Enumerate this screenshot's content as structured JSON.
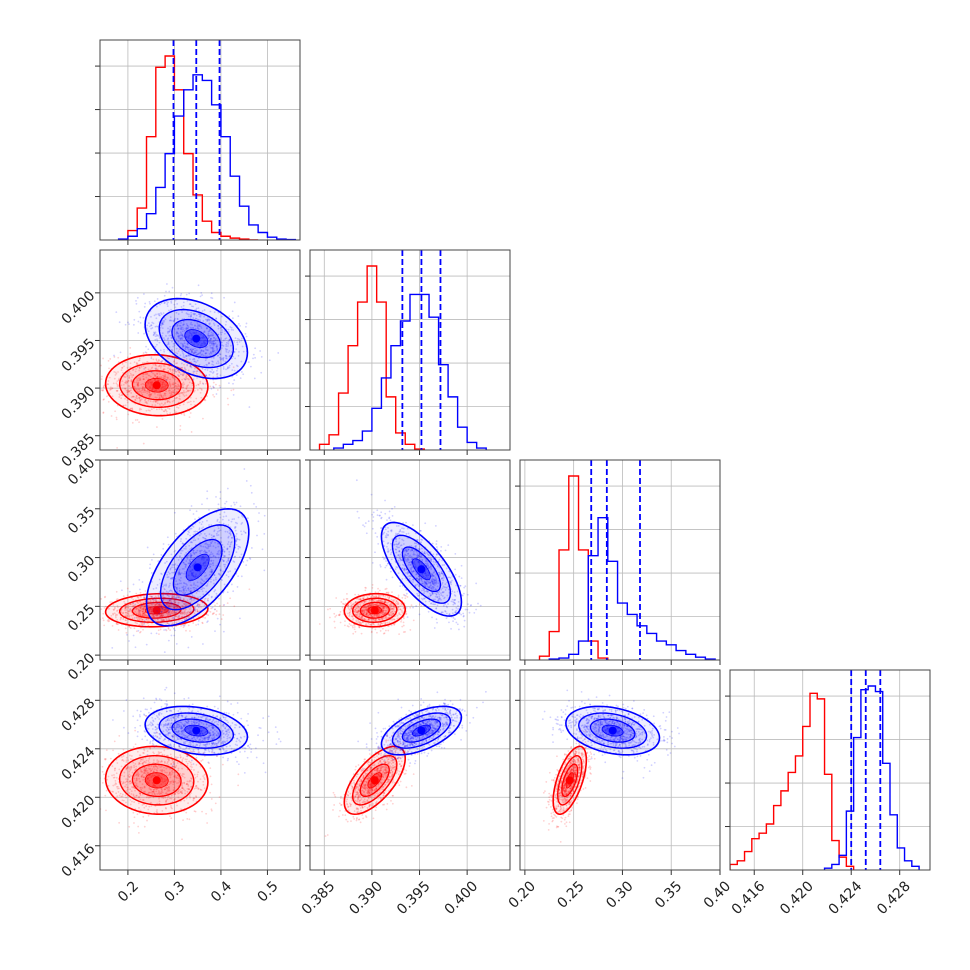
{
  "chart_data": {
    "type": "corner",
    "grid": true,
    "colors": {
      "series_a": "#ff0000",
      "series_b": "#0000ff",
      "median_lines": "#0000ff"
    },
    "parameters": [
      {
        "range": [
          0.14,
          0.57
        ],
        "ticks": [
          "0.2",
          "0.3",
          "0.4",
          "0.5"
        ],
        "tick_values": [
          0.2,
          0.3,
          0.4,
          0.5
        ]
      },
      {
        "range": [
          0.3835,
          0.4045
        ],
        "ticks": [
          "0.385",
          "0.390",
          "0.395",
          "0.400"
        ],
        "tick_values": [
          0.385,
          0.39,
          0.395,
          0.4
        ]
      },
      {
        "range": [
          0.195,
          0.4
        ],
        "ticks": [
          "0.20",
          "0.25",
          "0.30",
          "0.35",
          "0.40"
        ],
        "tick_values": [
          0.2,
          0.25,
          0.3,
          0.35,
          0.4
        ]
      },
      {
        "range": [
          0.414,
          0.4305
        ],
        "ticks": [
          "0.416",
          "0.420",
          "0.424",
          "0.428"
        ],
        "tick_values": [
          0.416,
          0.42,
          0.424,
          0.428
        ]
      }
    ],
    "marginals": [
      {
        "param": 0,
        "median_lines_b": [
          0.298,
          0.347,
          0.397
        ],
        "hist_a": {
          "edges": [
            0.2,
            0.22,
            0.24,
            0.26,
            0.28,
            0.3,
            0.32,
            0.34,
            0.36,
            0.38,
            0.4,
            0.42,
            0.44,
            0.46,
            0.48
          ],
          "counts": [
            0.05,
            0.17,
            0.55,
            0.92,
            0.98,
            0.8,
            0.46,
            0.24,
            0.1,
            0.04,
            0.02,
            0.01,
            0.005,
            0.0
          ]
        },
        "hist_b": {
          "edges": [
            0.18,
            0.2,
            0.22,
            0.24,
            0.26,
            0.28,
            0.3,
            0.32,
            0.34,
            0.36,
            0.38,
            0.4,
            0.42,
            0.44,
            0.46,
            0.48,
            0.5,
            0.52,
            0.54,
            0.56
          ],
          "counts": [
            0.005,
            0.02,
            0.06,
            0.14,
            0.28,
            0.46,
            0.66,
            0.8,
            0.88,
            0.85,
            0.72,
            0.55,
            0.34,
            0.18,
            0.08,
            0.04,
            0.015,
            0.005,
            0.002
          ]
        }
      },
      {
        "param": 1,
        "median_lines_b": [
          0.3932,
          0.3952,
          0.3972
        ],
        "hist_a": {
          "edges": [
            0.3845,
            0.3855,
            0.3865,
            0.3875,
            0.3885,
            0.3895,
            0.3905,
            0.3915,
            0.3925,
            0.3935,
            0.3945,
            0.3955
          ],
          "counts": [
            0.03,
            0.08,
            0.3,
            0.55,
            0.78,
            0.97,
            0.78,
            0.28,
            0.09,
            0.03,
            0.005
          ]
        },
        "hist_b": {
          "edges": [
            0.386,
            0.387,
            0.388,
            0.389,
            0.39,
            0.391,
            0.392,
            0.393,
            0.394,
            0.395,
            0.396,
            0.397,
            0.398,
            0.399,
            0.4,
            0.401,
            0.402
          ],
          "counts": [
            0.01,
            0.03,
            0.05,
            0.1,
            0.22,
            0.38,
            0.55,
            0.68,
            0.82,
            0.82,
            0.7,
            0.45,
            0.28,
            0.12,
            0.04,
            0.01
          ]
        }
      },
      {
        "param": 2,
        "median_lines_b": [
          0.268,
          0.284,
          0.318
        ],
        "hist_a": {
          "edges": [
            0.215,
            0.225,
            0.235,
            0.245,
            0.255,
            0.265,
            0.275,
            0.285
          ],
          "counts": [
            0.02,
            0.15,
            0.58,
            0.97,
            0.58,
            0.1,
            0.01
          ]
        },
        "hist_b": {
          "edges": [
            0.225,
            0.235,
            0.245,
            0.255,
            0.265,
            0.275,
            0.285,
            0.295,
            0.305,
            0.315,
            0.325,
            0.335,
            0.345,
            0.355,
            0.365,
            0.375,
            0.385,
            0.395
          ],
          "counts": [
            0.005,
            0.01,
            0.03,
            0.1,
            0.55,
            0.75,
            0.52,
            0.3,
            0.24,
            0.18,
            0.14,
            0.1,
            0.08,
            0.05,
            0.03,
            0.015,
            0.005
          ]
        }
      },
      {
        "param": 3,
        "median_lines_b": [
          0.424,
          0.4252,
          0.4264
        ],
        "hist_a": {
          "edges": [
            0.414,
            0.4146,
            0.4152,
            0.4158,
            0.4164,
            0.417,
            0.4176,
            0.4182,
            0.4188,
            0.4194,
            0.42,
            0.4206,
            0.4212,
            0.4218,
            0.4224,
            0.423,
            0.4236,
            0.4242
          ],
          "counts": [
            0.03,
            0.05,
            0.1,
            0.17,
            0.2,
            0.25,
            0.35,
            0.43,
            0.53,
            0.62,
            0.78,
            0.96,
            0.93,
            0.52,
            0.16,
            0.07,
            0.02
          ]
        },
        "hist_b": {
          "edges": [
            0.4218,
            0.4224,
            0.423,
            0.4236,
            0.4242,
            0.4248,
            0.4254,
            0.426,
            0.4266,
            0.4272,
            0.4278,
            0.4284,
            0.429,
            0.4296
          ],
          "counts": [
            0.01,
            0.03,
            0.08,
            0.32,
            0.72,
            0.98,
            1.0,
            0.97,
            0.58,
            0.3,
            0.12,
            0.05,
            0.02
          ]
        }
      }
    ],
    "joint": [
      {
        "x": 0,
        "y": 1,
        "a": {
          "center": [
            0.262,
            0.3903
          ],
          "sd": [
            0.055,
            0.0016
          ],
          "rho": -0.05
        },
        "b": {
          "center": [
            0.347,
            0.3952
          ],
          "sd": [
            0.055,
            0.0021
          ],
          "rho": -0.35
        }
      },
      {
        "x": 0,
        "y": 2,
        "a": {
          "center": [
            0.262,
            0.246
          ],
          "sd": [
            0.055,
            0.0085
          ],
          "rho": 0.1
        },
        "b": {
          "center": [
            0.35,
            0.29
          ],
          "sd": [
            0.055,
            0.03
          ],
          "rho": 0.6
        }
      },
      {
        "x": 1,
        "y": 2,
        "a": {
          "center": [
            0.3903,
            0.246
          ],
          "sd": [
            0.0016,
            0.0085
          ],
          "rho": 0.05
        },
        "b": {
          "center": [
            0.3952,
            0.288
          ],
          "sd": [
            0.0021,
            0.024
          ],
          "rho": -0.7
        }
      },
      {
        "x": 0,
        "y": 3,
        "a": {
          "center": [
            0.262,
            0.4214
          ],
          "sd": [
            0.055,
            0.0014
          ],
          "rho": -0.05
        },
        "b": {
          "center": [
            0.347,
            0.4255
          ],
          "sd": [
            0.055,
            0.001
          ],
          "rho": -0.25
        }
      },
      {
        "x": 1,
        "y": 3,
        "a": {
          "center": [
            0.3903,
            0.4214
          ],
          "sd": [
            0.0016,
            0.0014
          ],
          "rho": 0.65
        },
        "b": {
          "center": [
            0.3952,
            0.4255
          ],
          "sd": [
            0.0021,
            0.001
          ],
          "rho": 0.55
        }
      },
      {
        "x": 2,
        "y": 3,
        "a": {
          "center": [
            0.246,
            0.4214
          ],
          "sd": [
            0.0085,
            0.0014
          ],
          "rho": 0.6
        },
        "b": {
          "center": [
            0.29,
            0.4255
          ],
          "sd": [
            0.024,
            0.001
          ],
          "rho": -0.3
        }
      }
    ]
  }
}
